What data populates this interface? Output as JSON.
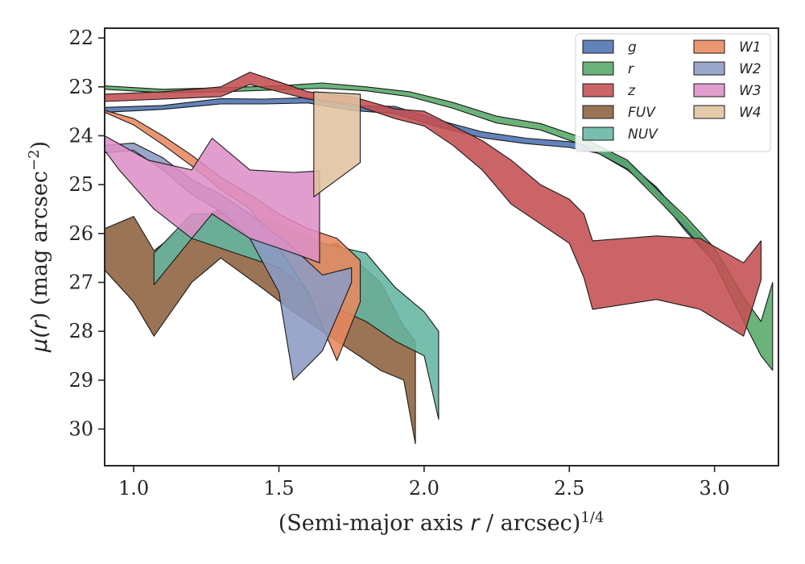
{
  "chart_data": {
    "type": "area",
    "title": "",
    "xlabel_prefix": "(Semi-major axis ",
    "xlabel_var": "r",
    "xlabel_suffix": " / arcsec)",
    "xlabel_sup": "1/4",
    "ylabel_prefix": "μ(",
    "ylabel_var": "r",
    "ylabel_suffix": ") (mag arcsec",
    "ylabel_sup": "−2",
    "ylabel_close": ")",
    "xlim": [
      0.9,
      3.22
    ],
    "ylim": [
      30.75,
      21.8
    ],
    "y_inverted": true,
    "x_ticks": [
      "1.0",
      "1.5",
      "2.0",
      "2.5",
      "3.0"
    ],
    "y_ticks": [
      "22",
      "23",
      "24",
      "25",
      "26",
      "27",
      "28",
      "29",
      "30"
    ],
    "grid": false,
    "legend_position": "top-right",
    "series": [
      {
        "name": "g",
        "color": "#4c72b0",
        "upper": [
          [
            0.9,
            23.42
          ],
          [
            1.1,
            23.38
          ],
          [
            1.3,
            23.24
          ],
          [
            1.45,
            23.25
          ],
          [
            1.6,
            23.22
          ],
          [
            1.75,
            23.38
          ],
          [
            1.9,
            23.4
          ],
          [
            2.05,
            23.68
          ],
          [
            2.2,
            23.92
          ],
          [
            2.35,
            24.05
          ],
          [
            2.5,
            24.12
          ],
          [
            2.6,
            24.22
          ],
          [
            2.7,
            24.55
          ],
          [
            2.8,
            25.05
          ],
          [
            2.9,
            25.75
          ],
          [
            2.98,
            26.25
          ]
        ],
        "lower": [
          [
            0.9,
            23.52
          ],
          [
            1.1,
            23.46
          ],
          [
            1.3,
            23.35
          ],
          [
            1.45,
            23.35
          ],
          [
            1.6,
            23.33
          ],
          [
            1.75,
            23.48
          ],
          [
            1.9,
            23.55
          ],
          [
            2.05,
            23.82
          ],
          [
            2.2,
            24.04
          ],
          [
            2.35,
            24.16
          ],
          [
            2.5,
            24.24
          ],
          [
            2.6,
            24.36
          ],
          [
            2.7,
            24.7
          ],
          [
            2.8,
            25.2
          ],
          [
            2.9,
            25.95
          ],
          [
            2.98,
            26.45
          ]
        ]
      },
      {
        "name": "r",
        "color": "#55a868",
        "upper": [
          [
            0.9,
            22.98
          ],
          [
            1.1,
            23.05
          ],
          [
            1.3,
            23.02
          ],
          [
            1.5,
            22.98
          ],
          [
            1.65,
            22.92
          ],
          [
            1.8,
            23.0
          ],
          [
            1.95,
            23.1
          ],
          [
            2.1,
            23.32
          ],
          [
            2.25,
            23.6
          ],
          [
            2.4,
            23.75
          ],
          [
            2.55,
            24.05
          ],
          [
            2.7,
            24.5
          ],
          [
            2.82,
            25.2
          ],
          [
            2.9,
            25.65
          ],
          [
            3.0,
            26.3
          ],
          [
            3.1,
            27.3
          ],
          [
            3.16,
            27.8
          ],
          [
            3.2,
            27.0
          ]
        ],
        "lower": [
          [
            0.9,
            23.05
          ],
          [
            1.1,
            23.12
          ],
          [
            1.3,
            23.1
          ],
          [
            1.5,
            23.06
          ],
          [
            1.65,
            23.03
          ],
          [
            1.8,
            23.08
          ],
          [
            1.95,
            23.2
          ],
          [
            2.1,
            23.44
          ],
          [
            2.25,
            23.74
          ],
          [
            2.4,
            23.88
          ],
          [
            2.55,
            24.2
          ],
          [
            2.7,
            24.68
          ],
          [
            2.82,
            25.4
          ],
          [
            2.9,
            25.9
          ],
          [
            3.0,
            26.6
          ],
          [
            3.1,
            27.8
          ],
          [
            3.16,
            28.5
          ],
          [
            3.2,
            28.8
          ]
        ]
      },
      {
        "name": "z",
        "color": "#c44e52",
        "upper": [
          [
            0.9,
            23.15
          ],
          [
            1.1,
            23.1
          ],
          [
            1.3,
            23.0
          ],
          [
            1.4,
            22.7
          ],
          [
            1.5,
            22.9
          ],
          [
            1.6,
            23.1
          ],
          [
            1.75,
            23.2
          ],
          [
            1.9,
            23.45
          ],
          [
            2.0,
            23.5
          ],
          [
            2.1,
            23.8
          ],
          [
            2.2,
            24.1
          ],
          [
            2.3,
            24.5
          ],
          [
            2.4,
            25.0
          ],
          [
            2.5,
            25.3
          ],
          [
            2.55,
            25.6
          ],
          [
            2.58,
            26.15
          ],
          [
            2.8,
            26.05
          ],
          [
            2.95,
            26.1
          ],
          [
            3.1,
            26.6
          ],
          [
            3.16,
            26.15
          ]
        ],
        "lower": [
          [
            0.9,
            23.3
          ],
          [
            1.1,
            23.25
          ],
          [
            1.3,
            23.2
          ],
          [
            1.4,
            22.95
          ],
          [
            1.5,
            23.1
          ],
          [
            1.6,
            23.25
          ],
          [
            1.75,
            23.35
          ],
          [
            1.9,
            23.65
          ],
          [
            2.0,
            23.8
          ],
          [
            2.1,
            24.2
          ],
          [
            2.2,
            24.7
          ],
          [
            2.3,
            25.4
          ],
          [
            2.4,
            25.8
          ],
          [
            2.5,
            26.2
          ],
          [
            2.55,
            26.9
          ],
          [
            2.58,
            27.55
          ],
          [
            2.8,
            27.35
          ],
          [
            2.95,
            27.55
          ],
          [
            3.1,
            28.1
          ],
          [
            3.16,
            26.95
          ]
        ]
      },
      {
        "name": "FUV",
        "color": "#8c613c",
        "upper": [
          [
            0.9,
            25.9
          ],
          [
            1.0,
            25.65
          ],
          [
            1.07,
            26.35
          ],
          [
            1.2,
            25.75
          ],
          [
            1.3,
            25.5
          ],
          [
            1.45,
            25.9
          ],
          [
            1.55,
            26.4
          ],
          [
            1.7,
            26.2
          ],
          [
            1.85,
            27.0
          ],
          [
            1.93,
            27.9
          ],
          [
            1.97,
            28.2
          ]
        ],
        "lower": [
          [
            0.9,
            26.75
          ],
          [
            1.0,
            27.4
          ],
          [
            1.07,
            28.1
          ],
          [
            1.2,
            27.0
          ],
          [
            1.3,
            26.5
          ],
          [
            1.45,
            27.15
          ],
          [
            1.55,
            27.6
          ],
          [
            1.7,
            28.2
          ],
          [
            1.85,
            28.8
          ],
          [
            1.93,
            29.0
          ],
          [
            1.97,
            30.3
          ]
        ]
      },
      {
        "name": "NUV",
        "color": "#64b5a0",
        "upper": [
          [
            1.07,
            26.4
          ],
          [
            1.2,
            25.6
          ],
          [
            1.35,
            25.6
          ],
          [
            1.5,
            25.8
          ],
          [
            1.65,
            26.2
          ],
          [
            1.8,
            26.4
          ],
          [
            1.9,
            27.1
          ],
          [
            2.0,
            27.6
          ],
          [
            2.05,
            28.0
          ]
        ],
        "lower": [
          [
            1.07,
            27.05
          ],
          [
            1.2,
            26.1
          ],
          [
            1.35,
            26.4
          ],
          [
            1.5,
            26.7
          ],
          [
            1.65,
            27.4
          ],
          [
            1.8,
            27.8
          ],
          [
            1.9,
            28.2
          ],
          [
            2.0,
            28.5
          ],
          [
            2.05,
            29.8
          ]
        ]
      },
      {
        "name": "W1",
        "color": "#e8875e",
        "upper": [
          [
            0.9,
            23.48
          ],
          [
            1.0,
            23.65
          ],
          [
            1.1,
            24.0
          ],
          [
            1.2,
            24.4
          ],
          [
            1.3,
            24.85
          ],
          [
            1.4,
            25.2
          ],
          [
            1.5,
            25.6
          ],
          [
            1.6,
            25.9
          ],
          [
            1.7,
            26.1
          ],
          [
            1.78,
            26.55
          ]
        ],
        "lower": [
          [
            0.9,
            23.52
          ],
          [
            1.0,
            23.78
          ],
          [
            1.1,
            24.18
          ],
          [
            1.2,
            24.62
          ],
          [
            1.3,
            25.1
          ],
          [
            1.4,
            25.5
          ],
          [
            1.5,
            26.3
          ],
          [
            1.6,
            27.2
          ],
          [
            1.7,
            28.6
          ],
          [
            1.78,
            27.4
          ]
        ]
      },
      {
        "name": "W2",
        "color": "#8c9bc4",
        "upper": [
          [
            0.9,
            24.2
          ],
          [
            1.0,
            24.15
          ],
          [
            1.1,
            24.45
          ],
          [
            1.2,
            24.9
          ],
          [
            1.3,
            25.2
          ],
          [
            1.4,
            25.6
          ],
          [
            1.55,
            26.3
          ],
          [
            1.65,
            26.85
          ],
          [
            1.75,
            26.7
          ]
        ],
        "lower": [
          [
            0.9,
            24.35
          ],
          [
            1.0,
            24.3
          ],
          [
            1.1,
            24.7
          ],
          [
            1.2,
            25.2
          ],
          [
            1.3,
            25.55
          ],
          [
            1.4,
            26.1
          ],
          [
            1.5,
            27.2
          ],
          [
            1.55,
            29.0
          ],
          [
            1.65,
            28.4
          ],
          [
            1.75,
            27.0
          ]
        ]
      },
      {
        "name": "W3",
        "color": "#dd8fc6",
        "upper": [
          [
            0.9,
            24.0
          ],
          [
            1.05,
            24.5
          ],
          [
            1.2,
            24.7
          ],
          [
            1.27,
            24.05
          ],
          [
            1.4,
            24.7
          ],
          [
            1.55,
            24.75
          ],
          [
            1.64,
            24.72
          ]
        ],
        "lower": [
          [
            0.9,
            24.3
          ],
          [
            0.95,
            24.7
          ],
          [
            1.07,
            25.5
          ],
          [
            1.2,
            26.1
          ],
          [
            1.27,
            25.6
          ],
          [
            1.4,
            26.1
          ],
          [
            1.55,
            26.4
          ],
          [
            1.64,
            26.6
          ]
        ]
      },
      {
        "name": "W4",
        "color": "#e0c29e",
        "upper": [
          [
            1.62,
            23.1
          ],
          [
            1.78,
            23.15
          ]
        ],
        "lower": [
          [
            1.62,
            25.25
          ],
          [
            1.78,
            24.55
          ]
        ]
      }
    ]
  }
}
